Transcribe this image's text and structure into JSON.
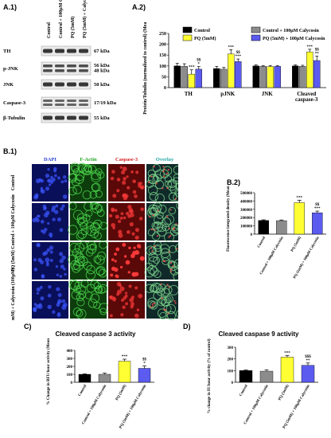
{
  "panels": {
    "a1": "A.1)",
    "a2": "A.2)",
    "b1": "B.1)",
    "b2": "B.2)",
    "c": "C)",
    "d": "D)"
  },
  "blot": {
    "lanes": [
      "Control",
      "Control + 100μM Calyosin",
      "PQ (5mM)",
      "PQ (5mM) + Calycosin(100μM)"
    ],
    "rows": [
      {
        "name": "TH",
        "kda": "67 kDa"
      },
      {
        "name": "p-JNK",
        "kda": "56 kDa\n48 kDa"
      },
      {
        "name": "JNK",
        "kda": "50 kDa"
      },
      {
        "name": "Caspase-3",
        "kda": "17/19 kDa"
      },
      {
        "name": "β-Tubulin",
        "kda": "55 kDa"
      }
    ]
  },
  "micro": {
    "columns": [
      "DAPI",
      "F-Actin",
      "Caspase-3",
      "Overlay"
    ],
    "column_colors": [
      "#2b3fd6",
      "#1fa31f",
      "#d42020",
      "#1fa3a3"
    ],
    "rows": [
      "Control",
      "Control + 100μM Calycosin",
      "PQ (5mM)",
      "PQ (5mM) + Calycosin (100μM)"
    ]
  },
  "colors": {
    "control": "#000000",
    "calycosin": "#8c8c8c",
    "pq": "#ffff33",
    "pq_caly": "#5b5bf0"
  },
  "chart_data": [
    {
      "id": "A.2",
      "type": "bar",
      "title": "",
      "ylabel": "Protein/Tubulin (normalized to control) (Mean ± SD)",
      "ylim": [
        0,
        250
      ],
      "yticks": [
        0,
        50,
        100,
        150,
        200,
        250
      ],
      "categories": [
        "TH",
        "pJNK",
        "JNK",
        "Cleaved caspase-3"
      ],
      "series": [
        {
          "name": "Control",
          "color": "#000000",
          "values": [
            100,
            88,
            100,
            100
          ],
          "err": [
            12,
            10,
            5,
            5
          ]
        },
        {
          "name": "Control + 100μM Calycosin",
          "color": "#8c8c8c",
          "values": [
            98,
            85,
            98,
            98
          ],
          "err": [
            12,
            8,
            4,
            5
          ]
        },
        {
          "name": "PQ (5mM)",
          "color": "#ffff33",
          "values": [
            62,
            155,
            97,
            165
          ],
          "err": [
            20,
            20,
            5,
            12
          ]
        },
        {
          "name": "PQ (5mM) + 100μM Calycosin",
          "color": "#5b5bf0",
          "values": [
            85,
            120,
            98,
            125
          ],
          "err": [
            12,
            12,
            4,
            20
          ]
        }
      ],
      "annotations": [
        {
          "cat": 0,
          "series": 2,
          "text": "***"
        },
        {
          "cat": 0,
          "series": 3,
          "text": "$$\n*"
        },
        {
          "cat": 1,
          "series": 2,
          "text": "***"
        },
        {
          "cat": 1,
          "series": 3,
          "text": "$$\n***"
        },
        {
          "cat": 3,
          "series": 2,
          "text": "***"
        },
        {
          "cat": 3,
          "series": 3,
          "text": "$$\n**"
        }
      ]
    },
    {
      "id": "B.2",
      "type": "bar",
      "title": "",
      "ylabel": "Fluorescence integrated density (Mean ± SD)",
      "ylim": [
        0,
        500000
      ],
      "yticks": [
        0,
        100000,
        200000,
        300000,
        400000,
        500000
      ],
      "categories": [
        "Control",
        "Control + 100μM Calycosin",
        "PQ (5mM)",
        "PQ (5mM) + 100μM Calycosin"
      ],
      "values": [
        165000,
        163000,
        380000,
        258000
      ],
      "err": [
        8000,
        8000,
        30000,
        20000
      ],
      "colors": [
        "#000000",
        "#8c8c8c",
        "#ffff33",
        "#5b5bf0"
      ],
      "annotations": [
        "",
        "",
        "***",
        "$$\n***"
      ]
    },
    {
      "id": "C",
      "type": "bar",
      "title": "Cleaved caspase 3 activity",
      "ylabel": "% Change in RFU/hour activity (Mean ± SD)",
      "ylim": [
        0,
        400
      ],
      "yticks": [
        0,
        100,
        200,
        300,
        400
      ],
      "categories": [
        "Control",
        "Control + 100μM Calycosin",
        "PQ (5mM)",
        "PQ (5mM) + 100μM Calycosin"
      ],
      "values": [
        100,
        100,
        265,
        175
      ],
      "err": [
        5,
        15,
        25,
        30
      ],
      "colors": [
        "#000000",
        "#8c8c8c",
        "#ffff33",
        "#5b5bf0"
      ],
      "annotations": [
        "",
        "",
        "***",
        "$$\n*"
      ]
    },
    {
      "id": "D",
      "type": "bar",
      "title": "Cleaved caspase 9 activity",
      "ylabel": "% change in IU/hour activity (% of control) (Mean ± SD)",
      "ylim": [
        0,
        300
      ],
      "yticks": [
        0,
        100,
        200,
        300
      ],
      "categories": [
        "Control",
        "Control + 100μM Calycosin",
        "PQ (5mM)",
        "PQ (5mM) + 100μM Calycosin"
      ],
      "values": [
        100,
        95,
        215,
        145
      ],
      "err": [
        5,
        12,
        15,
        20
      ],
      "colors": [
        "#000000",
        "#8c8c8c",
        "#ffff33",
        "#5b5bf0"
      ],
      "annotations": [
        "",
        "",
        "***",
        "$$$\n**"
      ]
    }
  ]
}
